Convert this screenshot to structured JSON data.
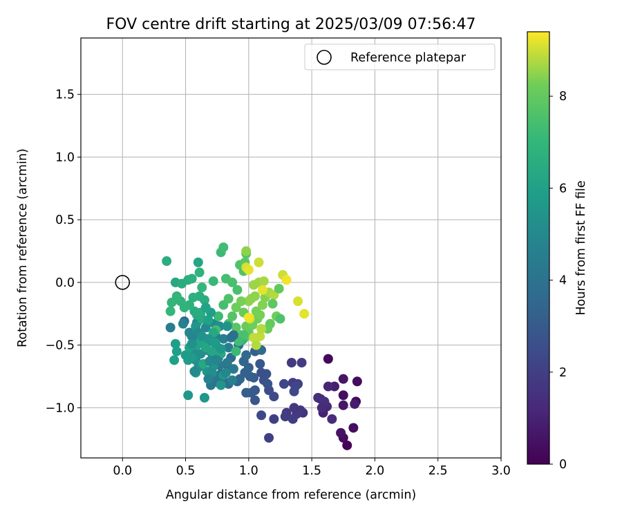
{
  "chart_data": {
    "type": "scatter",
    "title": "FOV centre drift starting at 2025/03/09 07:56:47",
    "xlabel": "Angular distance from reference (arcmin)",
    "ylabel": "Rotation from reference (arcmin)",
    "xlim": [
      -0.33,
      3.0
    ],
    "ylim": [
      -1.4,
      1.95
    ],
    "xticks": [
      0.0,
      0.5,
      1.0,
      1.5,
      2.0,
      2.5,
      3.0
    ],
    "xtick_labels": [
      "0.0",
      "0.5",
      "1.0",
      "1.5",
      "2.0",
      "2.5",
      "3.0"
    ],
    "yticks": [
      -1.0,
      -0.5,
      0.0,
      0.5,
      1.0,
      1.5
    ],
    "ytick_labels": [
      "−1.0",
      "−0.5",
      "0.0",
      "0.5",
      "1.0",
      "1.5"
    ],
    "grid": true,
    "legend": {
      "placement": "top-right",
      "entries": [
        {
          "label": "Reference platepar",
          "marker": "open-circle"
        }
      ]
    },
    "reference_point": {
      "x": 0.0,
      "y": 0.0
    },
    "colorbar": {
      "label": "Hours from first FF file",
      "colormap": "viridis",
      "range": [
        0,
        9.4
      ],
      "ticks": [
        0,
        2,
        4,
        6,
        8
      ],
      "tick_labels": [
        "0",
        "2",
        "4",
        "6",
        "8"
      ]
    },
    "series": [
      {
        "marker": "filled-circle",
        "color_by": "hours",
        "points": [
          [
            1.78,
            -1.3,
            0.1
          ],
          [
            1.75,
            -1.24,
            0.3
          ],
          [
            1.73,
            -1.2,
            0.5
          ],
          [
            1.63,
            -0.61,
            0.2
          ],
          [
            1.83,
            -1.16,
            0.4
          ],
          [
            1.75,
            -0.77,
            0.6
          ],
          [
            1.86,
            -0.79,
            0.3
          ],
          [
            1.85,
            -0.95,
            0.2
          ],
          [
            1.84,
            -0.97,
            0.8
          ],
          [
            1.75,
            -0.9,
            0.4
          ],
          [
            1.75,
            -0.98,
            0.6
          ],
          [
            1.68,
            -0.83,
            0.9
          ],
          [
            1.63,
            -0.83,
            1.1
          ],
          [
            1.62,
            -0.99,
            1.2
          ],
          [
            1.59,
            -1.04,
            1.0
          ],
          [
            1.66,
            -1.09,
            1.3
          ],
          [
            1.57,
            -0.93,
            1.2
          ],
          [
            1.55,
            -0.92,
            1.4
          ],
          [
            1.6,
            -0.95,
            1.5
          ],
          [
            1.58,
            -1.0,
            1.3
          ],
          [
            1.43,
            -1.04,
            1.6
          ],
          [
            1.41,
            -1.02,
            1.7
          ],
          [
            1.38,
            -1.05,
            1.8
          ],
          [
            1.35,
            -1.09,
            1.9
          ],
          [
            1.36,
            -1.0,
            1.7
          ],
          [
            1.3,
            -1.04,
            1.8
          ],
          [
            1.29,
            -1.07,
            1.9
          ],
          [
            1.2,
            -1.09,
            2.0
          ],
          [
            1.34,
            -0.64,
            1.8
          ],
          [
            1.42,
            -0.64,
            1.9
          ],
          [
            1.35,
            -0.8,
            2.0
          ],
          [
            1.39,
            -0.81,
            2.1
          ],
          [
            1.37,
            -0.83,
            2.2
          ],
          [
            1.28,
            -0.81,
            2.2
          ],
          [
            1.36,
            -0.87,
            2.3
          ],
          [
            1.16,
            -1.24,
            2.0
          ],
          [
            1.1,
            -1.06,
            2.3
          ],
          [
            1.2,
            -0.91,
            2.4
          ],
          [
            1.16,
            -0.86,
            2.5
          ],
          [
            1.12,
            -0.78,
            2.6
          ],
          [
            1.1,
            -0.72,
            2.6
          ],
          [
            1.14,
            -0.73,
            2.7
          ],
          [
            1.15,
            -0.81,
            2.8
          ],
          [
            1.05,
            -0.86,
            2.9
          ],
          [
            1.05,
            -0.94,
            2.8
          ],
          [
            1.09,
            -0.65,
            2.9
          ],
          [
            1.02,
            -0.88,
            3.0
          ],
          [
            0.98,
            -0.88,
            3.1
          ],
          [
            1.04,
            -0.76,
            3.1
          ],
          [
            1.05,
            -0.55,
            3.2
          ],
          [
            1.0,
            -0.68,
            3.3
          ],
          [
            1.01,
            -0.75,
            3.2
          ],
          [
            0.97,
            -0.72,
            3.3
          ],
          [
            0.93,
            -0.77,
            3.4
          ],
          [
            0.91,
            -0.79,
            3.4
          ],
          [
            0.96,
            -0.63,
            3.5
          ],
          [
            0.98,
            -0.58,
            3.6
          ],
          [
            1.1,
            -0.54,
            3.6
          ],
          [
            0.92,
            -0.5,
            3.7
          ],
          [
            0.86,
            -0.6,
            3.7
          ],
          [
            0.84,
            -0.68,
            3.8
          ],
          [
            0.84,
            -0.81,
            3.8
          ],
          [
            0.78,
            -0.73,
            3.9
          ],
          [
            0.8,
            -0.78,
            3.9
          ],
          [
            0.76,
            -0.8,
            4.0
          ],
          [
            0.7,
            -0.82,
            4.1
          ],
          [
            0.74,
            -0.76,
            4.2
          ],
          [
            0.77,
            -0.66,
            4.2
          ],
          [
            0.83,
            -0.64,
            4.3
          ],
          [
            0.88,
            -0.69,
            4.3
          ],
          [
            0.76,
            -0.6,
            4.4
          ],
          [
            0.71,
            -0.57,
            4.4
          ],
          [
            0.74,
            -0.5,
            4.5
          ],
          [
            0.84,
            -0.52,
            4.5
          ],
          [
            0.8,
            -0.45,
            4.6
          ],
          [
            0.74,
            -0.43,
            4.6
          ],
          [
            0.69,
            -0.47,
            4.7
          ],
          [
            0.65,
            -0.45,
            4.7
          ],
          [
            0.6,
            -0.44,
            4.8
          ],
          [
            0.55,
            -0.43,
            4.8
          ],
          [
            0.53,
            -0.4,
            4.9
          ],
          [
            0.49,
            -0.31,
            3.8
          ],
          [
            0.59,
            -0.32,
            4.9
          ],
          [
            0.66,
            -0.36,
            5.0
          ],
          [
            0.73,
            -0.33,
            5.0
          ],
          [
            0.77,
            -0.35,
            5.1
          ],
          [
            0.67,
            -0.54,
            5.1
          ],
          [
            0.62,
            -0.57,
            5.2
          ],
          [
            0.57,
            -0.55,
            5.2
          ],
          [
            0.58,
            -0.62,
            5.3
          ],
          [
            0.6,
            -0.68,
            5.3
          ],
          [
            0.67,
            -0.71,
            5.4
          ],
          [
            0.72,
            -0.67,
            5.4
          ],
          [
            0.8,
            -0.74,
            5.5
          ],
          [
            0.78,
            -0.82,
            5.5
          ],
          [
            0.65,
            -0.92,
            5.6
          ],
          [
            0.52,
            -0.9,
            5.6
          ],
          [
            0.58,
            -0.72,
            5.7
          ],
          [
            0.55,
            -0.6,
            5.7
          ],
          [
            0.52,
            -0.62,
            5.8
          ],
          [
            0.5,
            -0.58,
            5.8
          ],
          [
            0.43,
            -0.55,
            5.9
          ],
          [
            0.42,
            -0.49,
            5.9
          ],
          [
            0.41,
            -0.62,
            6.0
          ],
          [
            0.53,
            -0.52,
            6.0
          ],
          [
            0.59,
            -0.5,
            6.1
          ],
          [
            0.62,
            -0.47,
            6.1
          ],
          [
            0.66,
            -0.52,
            6.2
          ],
          [
            0.71,
            -0.55,
            6.2
          ],
          [
            0.78,
            -0.57,
            6.3
          ],
          [
            0.64,
            -0.65,
            6.3
          ],
          [
            0.63,
            -0.29,
            6.4
          ],
          [
            0.59,
            -0.26,
            6.4
          ],
          [
            0.57,
            -0.23,
            6.5
          ],
          [
            0.62,
            -0.24,
            6.5
          ],
          [
            0.65,
            -0.14,
            6.6
          ],
          [
            0.61,
            -0.11,
            6.6
          ],
          [
            0.56,
            -0.12,
            6.7
          ],
          [
            0.53,
            -0.18,
            6.7
          ],
          [
            0.49,
            -0.2,
            6.8
          ],
          [
            0.46,
            -0.15,
            6.8
          ],
          [
            0.43,
            -0.11,
            6.9
          ],
          [
            0.39,
            -0.16,
            6.9
          ],
          [
            0.38,
            -0.23,
            7.0
          ],
          [
            0.38,
            -0.36,
            4.5
          ],
          [
            0.42,
            0.0,
            6.3
          ],
          [
            0.47,
            -0.01,
            6.5
          ],
          [
            0.52,
            0.02,
            6.6
          ],
          [
            0.55,
            0.03,
            6.7
          ],
          [
            0.6,
            0.16,
            6.2
          ],
          [
            0.61,
            0.08,
            6.8
          ],
          [
            0.63,
            -0.04,
            7.0
          ],
          [
            0.35,
            0.17,
            6.6
          ],
          [
            0.72,
            0.01,
            7.1
          ],
          [
            0.78,
            0.24,
            7.2
          ],
          [
            0.8,
            0.28,
            7.3
          ],
          [
            0.82,
            0.03,
            7.4
          ],
          [
            0.87,
            0.0,
            7.5
          ],
          [
            0.91,
            -0.06,
            7.5
          ],
          [
            0.93,
            0.14,
            7.6
          ],
          [
            0.96,
            0.09,
            7.6
          ],
          [
            0.98,
            0.23,
            7.7
          ],
          [
            0.97,
            0.16,
            7.8
          ],
          [
            0.84,
            -0.13,
            7.6
          ],
          [
            0.8,
            -0.18,
            7.4
          ],
          [
            0.76,
            -0.27,
            7.2
          ],
          [
            0.74,
            -0.38,
            7.3
          ],
          [
            0.84,
            -0.33,
            7.5
          ],
          [
            0.87,
            -0.27,
            7.7
          ],
          [
            0.9,
            -0.36,
            7.8
          ],
          [
            0.9,
            -0.55,
            7.2
          ],
          [
            0.94,
            -0.42,
            7.9
          ],
          [
            0.97,
            -0.44,
            8.0
          ],
          [
            1.0,
            -0.4,
            8.0
          ],
          [
            0.98,
            -0.35,
            8.1
          ],
          [
            1.03,
            -0.34,
            8.2
          ],
          [
            1.07,
            -0.29,
            8.2
          ],
          [
            1.09,
            -0.26,
            8.3
          ],
          [
            1.06,
            -0.23,
            8.3
          ],
          [
            1.11,
            -0.18,
            8.4
          ],
          [
            1.13,
            -0.12,
            8.4
          ],
          [
            1.05,
            -0.11,
            8.5
          ],
          [
            1.02,
            -0.13,
            8.5
          ],
          [
            1.0,
            -0.15,
            8.5
          ],
          [
            0.94,
            -0.15,
            8.3
          ],
          [
            0.9,
            -0.2,
            8.2
          ],
          [
            0.96,
            -0.24,
            8.1
          ],
          [
            1.04,
            -0.02,
            8.6
          ],
          [
            1.08,
            0.0,
            8.6
          ],
          [
            1.12,
            0.01,
            8.7
          ],
          [
            1.16,
            -0.08,
            8.7
          ],
          [
            1.2,
            -0.1,
            8.8
          ],
          [
            1.24,
            -0.05,
            8.0
          ],
          [
            1.22,
            -0.27,
            8.2
          ],
          [
            1.19,
            -0.17,
            7.9
          ],
          [
            1.17,
            -0.33,
            8.0
          ],
          [
            1.25,
            -0.29,
            7.6
          ],
          [
            1.15,
            -0.37,
            8.1
          ],
          [
            1.09,
            -0.43,
            8.9
          ],
          [
            1.04,
            -0.44,
            8.9
          ],
          [
            1.06,
            -0.5,
            8.8
          ],
          [
            1.1,
            -0.37,
            8.8
          ],
          [
            1.01,
            -0.29,
            9.0
          ],
          [
            0.98,
            0.12,
            9.1
          ],
          [
            1.0,
            0.1,
            9.2
          ],
          [
            1.08,
            0.16,
            9.0
          ],
          [
            1.27,
            0.06,
            9.0
          ],
          [
            1.3,
            0.02,
            9.3
          ],
          [
            1.39,
            -0.15,
            9.1
          ],
          [
            1.44,
            -0.25,
            9.2
          ],
          [
            0.98,
            0.25,
            8.5
          ],
          [
            1.11,
            -0.06,
            9.2
          ],
          [
            1.0,
            -0.28,
            9.3
          ],
          [
            0.95,
            -0.46,
            7.0
          ],
          [
            0.96,
            -0.42,
            7.5
          ],
          [
            0.92,
            -0.47,
            7.3
          ],
          [
            0.86,
            -0.44,
            4.0
          ],
          [
            0.88,
            -0.42,
            3.9
          ],
          [
            0.83,
            -0.35,
            5.4
          ],
          [
            0.72,
            -0.4,
            6.3
          ],
          [
            0.68,
            -0.3,
            6.0
          ],
          [
            0.7,
            -0.24,
            5.9
          ],
          [
            0.66,
            -0.2,
            6.1
          ],
          [
            0.58,
            -0.35,
            5.6
          ],
          [
            0.55,
            -0.49,
            5.3
          ],
          [
            0.48,
            -0.33,
            4.6
          ],
          [
            0.6,
            -0.4,
            5.0
          ],
          [
            0.69,
            -0.63,
            5.0
          ],
          [
            0.75,
            -0.62,
            4.8
          ],
          [
            0.82,
            -0.72,
            4.9
          ],
          [
            0.87,
            -0.78,
            4.6
          ],
          [
            0.71,
            -0.72,
            5.2
          ],
          [
            0.57,
            -0.71,
            5.0
          ],
          [
            0.68,
            -0.77,
            4.7
          ],
          [
            0.63,
            -0.43,
            5.4
          ],
          [
            0.68,
            -0.45,
            5.5
          ],
          [
            0.73,
            -0.48,
            5.8
          ],
          [
            0.78,
            -0.53,
            5.6
          ]
        ]
      }
    ]
  }
}
